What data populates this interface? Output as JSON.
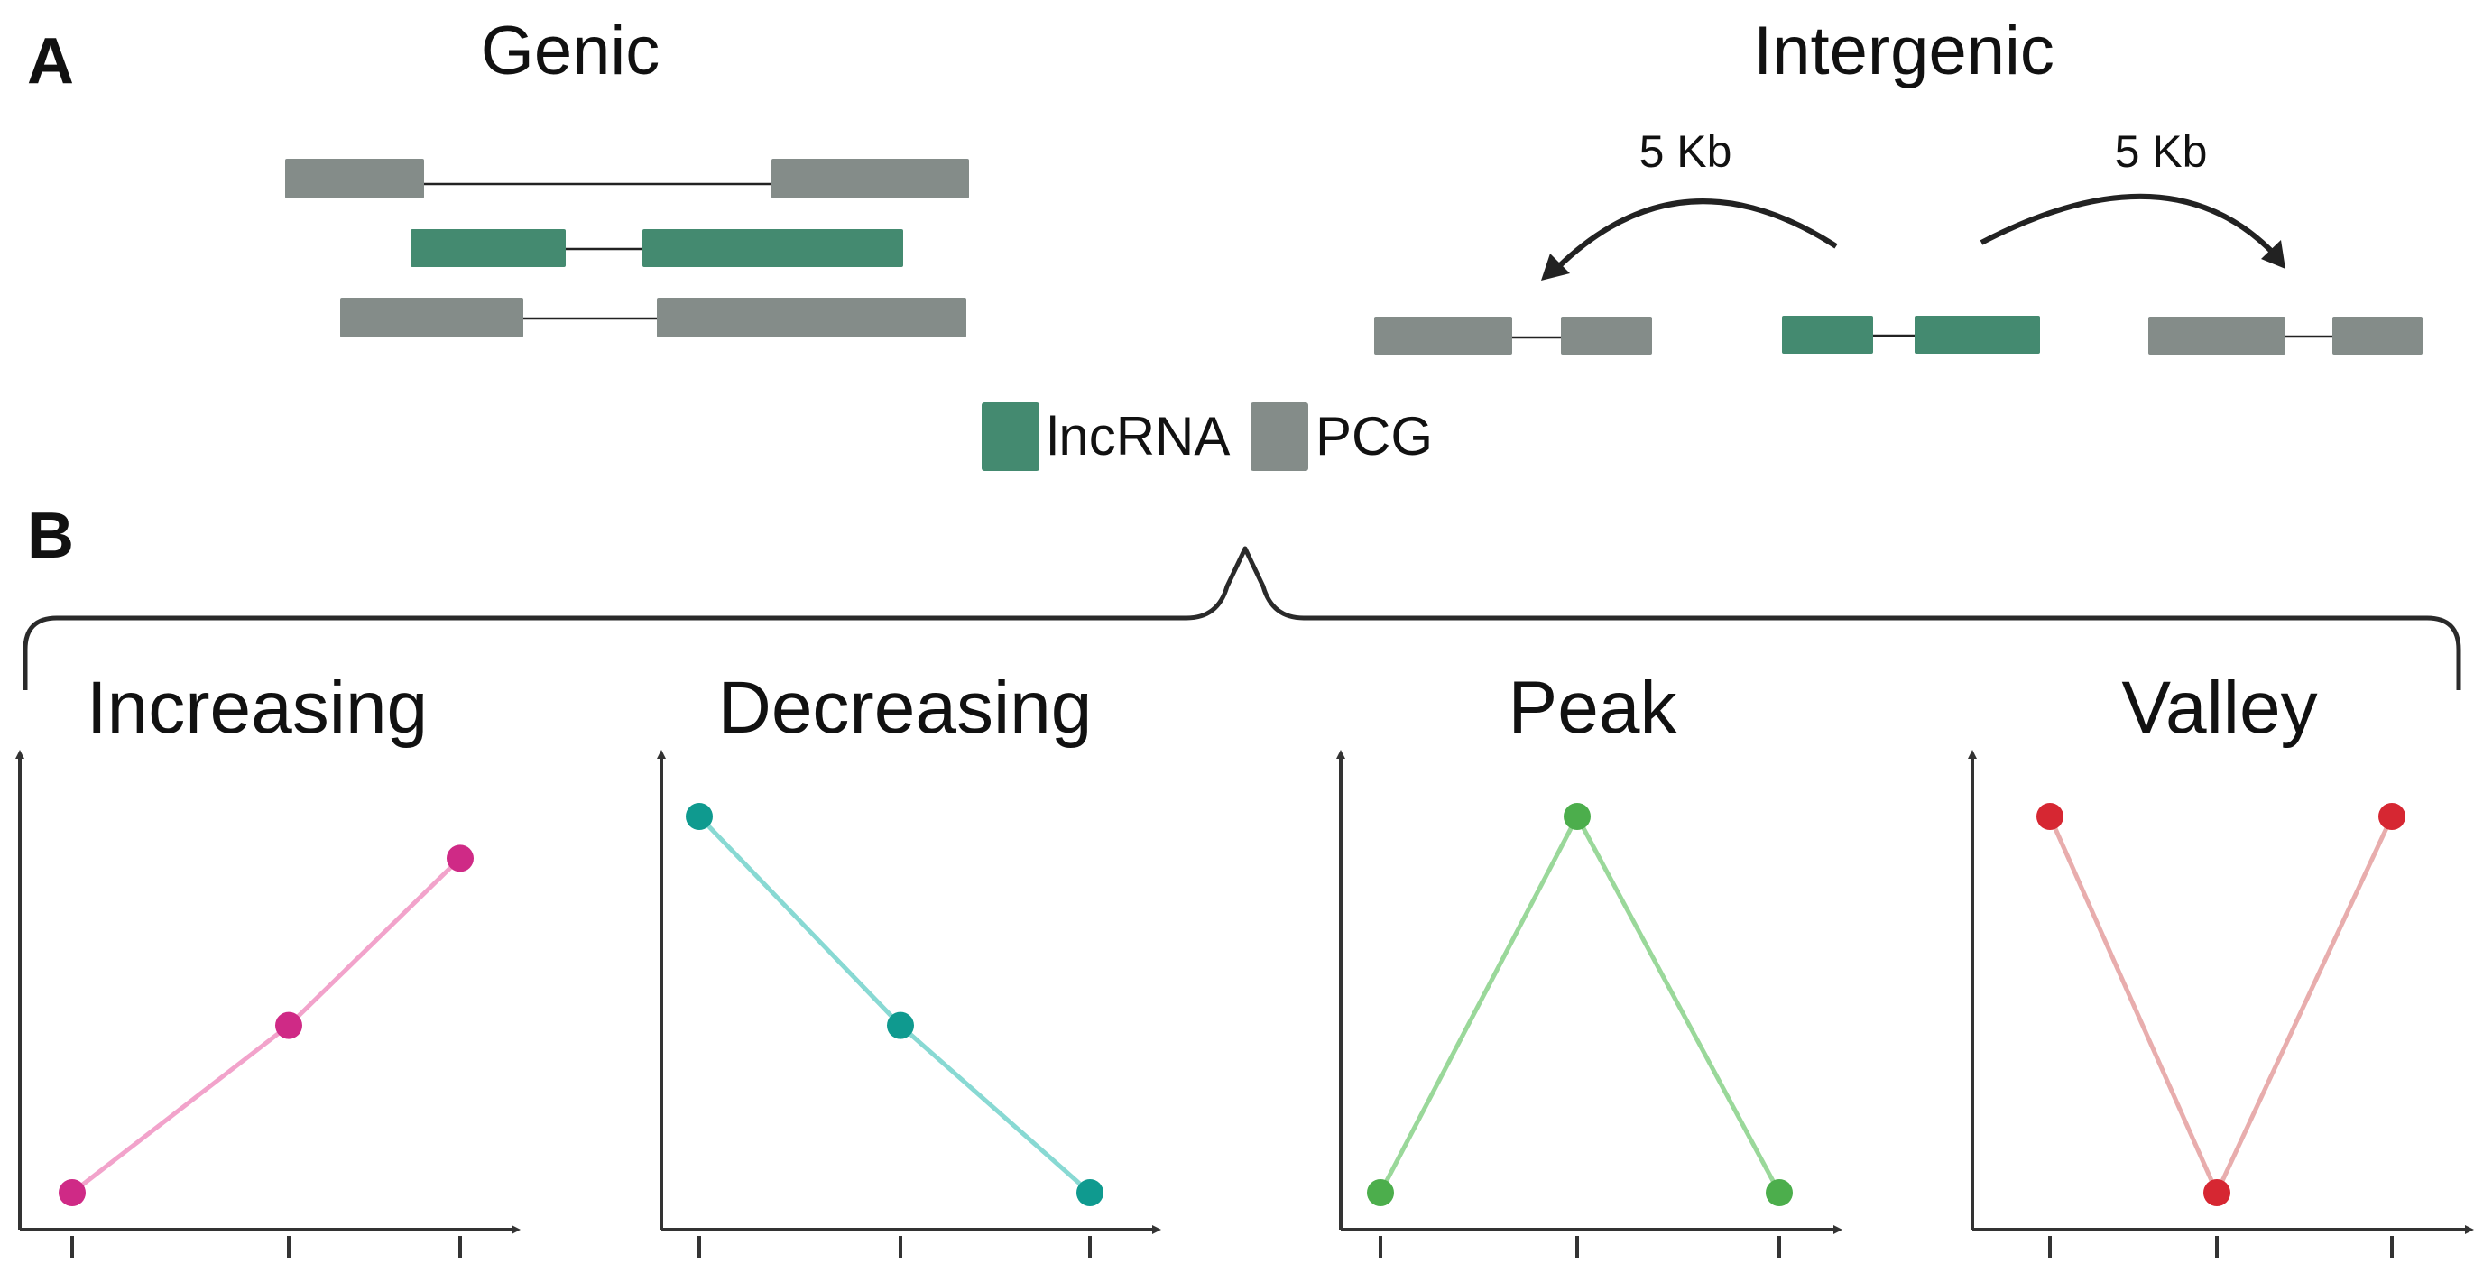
{
  "panel_a": {
    "label": "A",
    "genic": {
      "title": "Genic"
    },
    "intergenic": {
      "title": "Intergenic",
      "left_distance": "5 Kb",
      "right_distance": "5 Kb"
    },
    "legend": [
      {
        "label": "lncRNA",
        "color": "#448a70"
      },
      {
        "label": "PCG",
        "color": "#848c89"
      }
    ]
  },
  "panel_b": {
    "label": "B",
    "trends": [
      {
        "title": "Increasing",
        "point_color": "#cf2a86",
        "line_color": "#f2a3cb",
        "values": [
          1,
          5,
          9
        ]
      },
      {
        "title": "Decreasing",
        "point_color": "#0f9a8f",
        "line_color": "#88d9d3",
        "values": [
          10,
          5,
          1
        ]
      },
      {
        "title": "Peak",
        "point_color": "#4cae4c",
        "line_color": "#9ad89a",
        "values": [
          1,
          10,
          1
        ]
      },
      {
        "title": "Valley",
        "point_color": "#d62732",
        "line_color": "#e8adad",
        "values": [
          10,
          1,
          10
        ]
      }
    ]
  }
}
